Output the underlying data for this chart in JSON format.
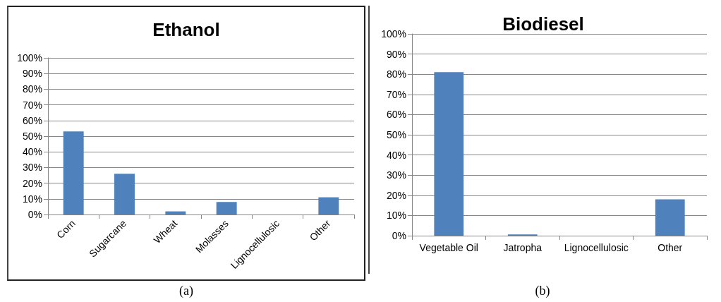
{
  "chart_data": [
    {
      "type": "bar",
      "title": "Ethanol",
      "categories": [
        "Corn",
        "Sugarcane",
        "Wheat",
        "Molasses",
        "Lignocellulosic",
        "Other"
      ],
      "values": [
        53,
        26,
        2,
        8,
        0,
        11
      ],
      "color": "#4f81bd",
      "ylim": [
        0,
        100
      ],
      "yticks": [
        {
          "value": 0,
          "label": "0%"
        },
        {
          "value": 10,
          "label": "10%"
        },
        {
          "value": 20,
          "label": "20%"
        },
        {
          "value": 30,
          "label": "30%"
        },
        {
          "value": 40,
          "label": "40%"
        },
        {
          "value": 50,
          "label": "50%"
        },
        {
          "value": 60,
          "label": "60%"
        },
        {
          "value": 70,
          "label": "70%"
        },
        {
          "value": 80,
          "label": "80%"
        },
        {
          "value": 90,
          "label": "90%"
        },
        {
          "value": 100,
          "label": "100%"
        }
      ],
      "grid": "y",
      "annotations": [
        "(a)"
      ]
    },
    {
      "type": "bar",
      "title": "Biodiesel",
      "categories": [
        "Vegetable Oil",
        "Jatropha",
        "Lignocellulosic",
        "Other"
      ],
      "values": [
        81,
        0.6,
        0,
        18
      ],
      "color": "#4f81bd",
      "ylim": [
        0,
        100
      ],
      "yticks": [
        {
          "value": 0,
          "label": "0%"
        },
        {
          "value": 10,
          "label": "10%"
        },
        {
          "value": 20,
          "label": "20%"
        },
        {
          "value": 30,
          "label": "30%"
        },
        {
          "value": 40,
          "label": "40%"
        },
        {
          "value": 50,
          "label": "50%"
        },
        {
          "value": 60,
          "label": "60%"
        },
        {
          "value": 70,
          "label": "70%"
        },
        {
          "value": 80,
          "label": "80%"
        },
        {
          "value": 90,
          "label": "90%"
        },
        {
          "value": 100,
          "label": "100%"
        }
      ],
      "grid": "y",
      "annotations": [
        "(b)"
      ]
    }
  ]
}
